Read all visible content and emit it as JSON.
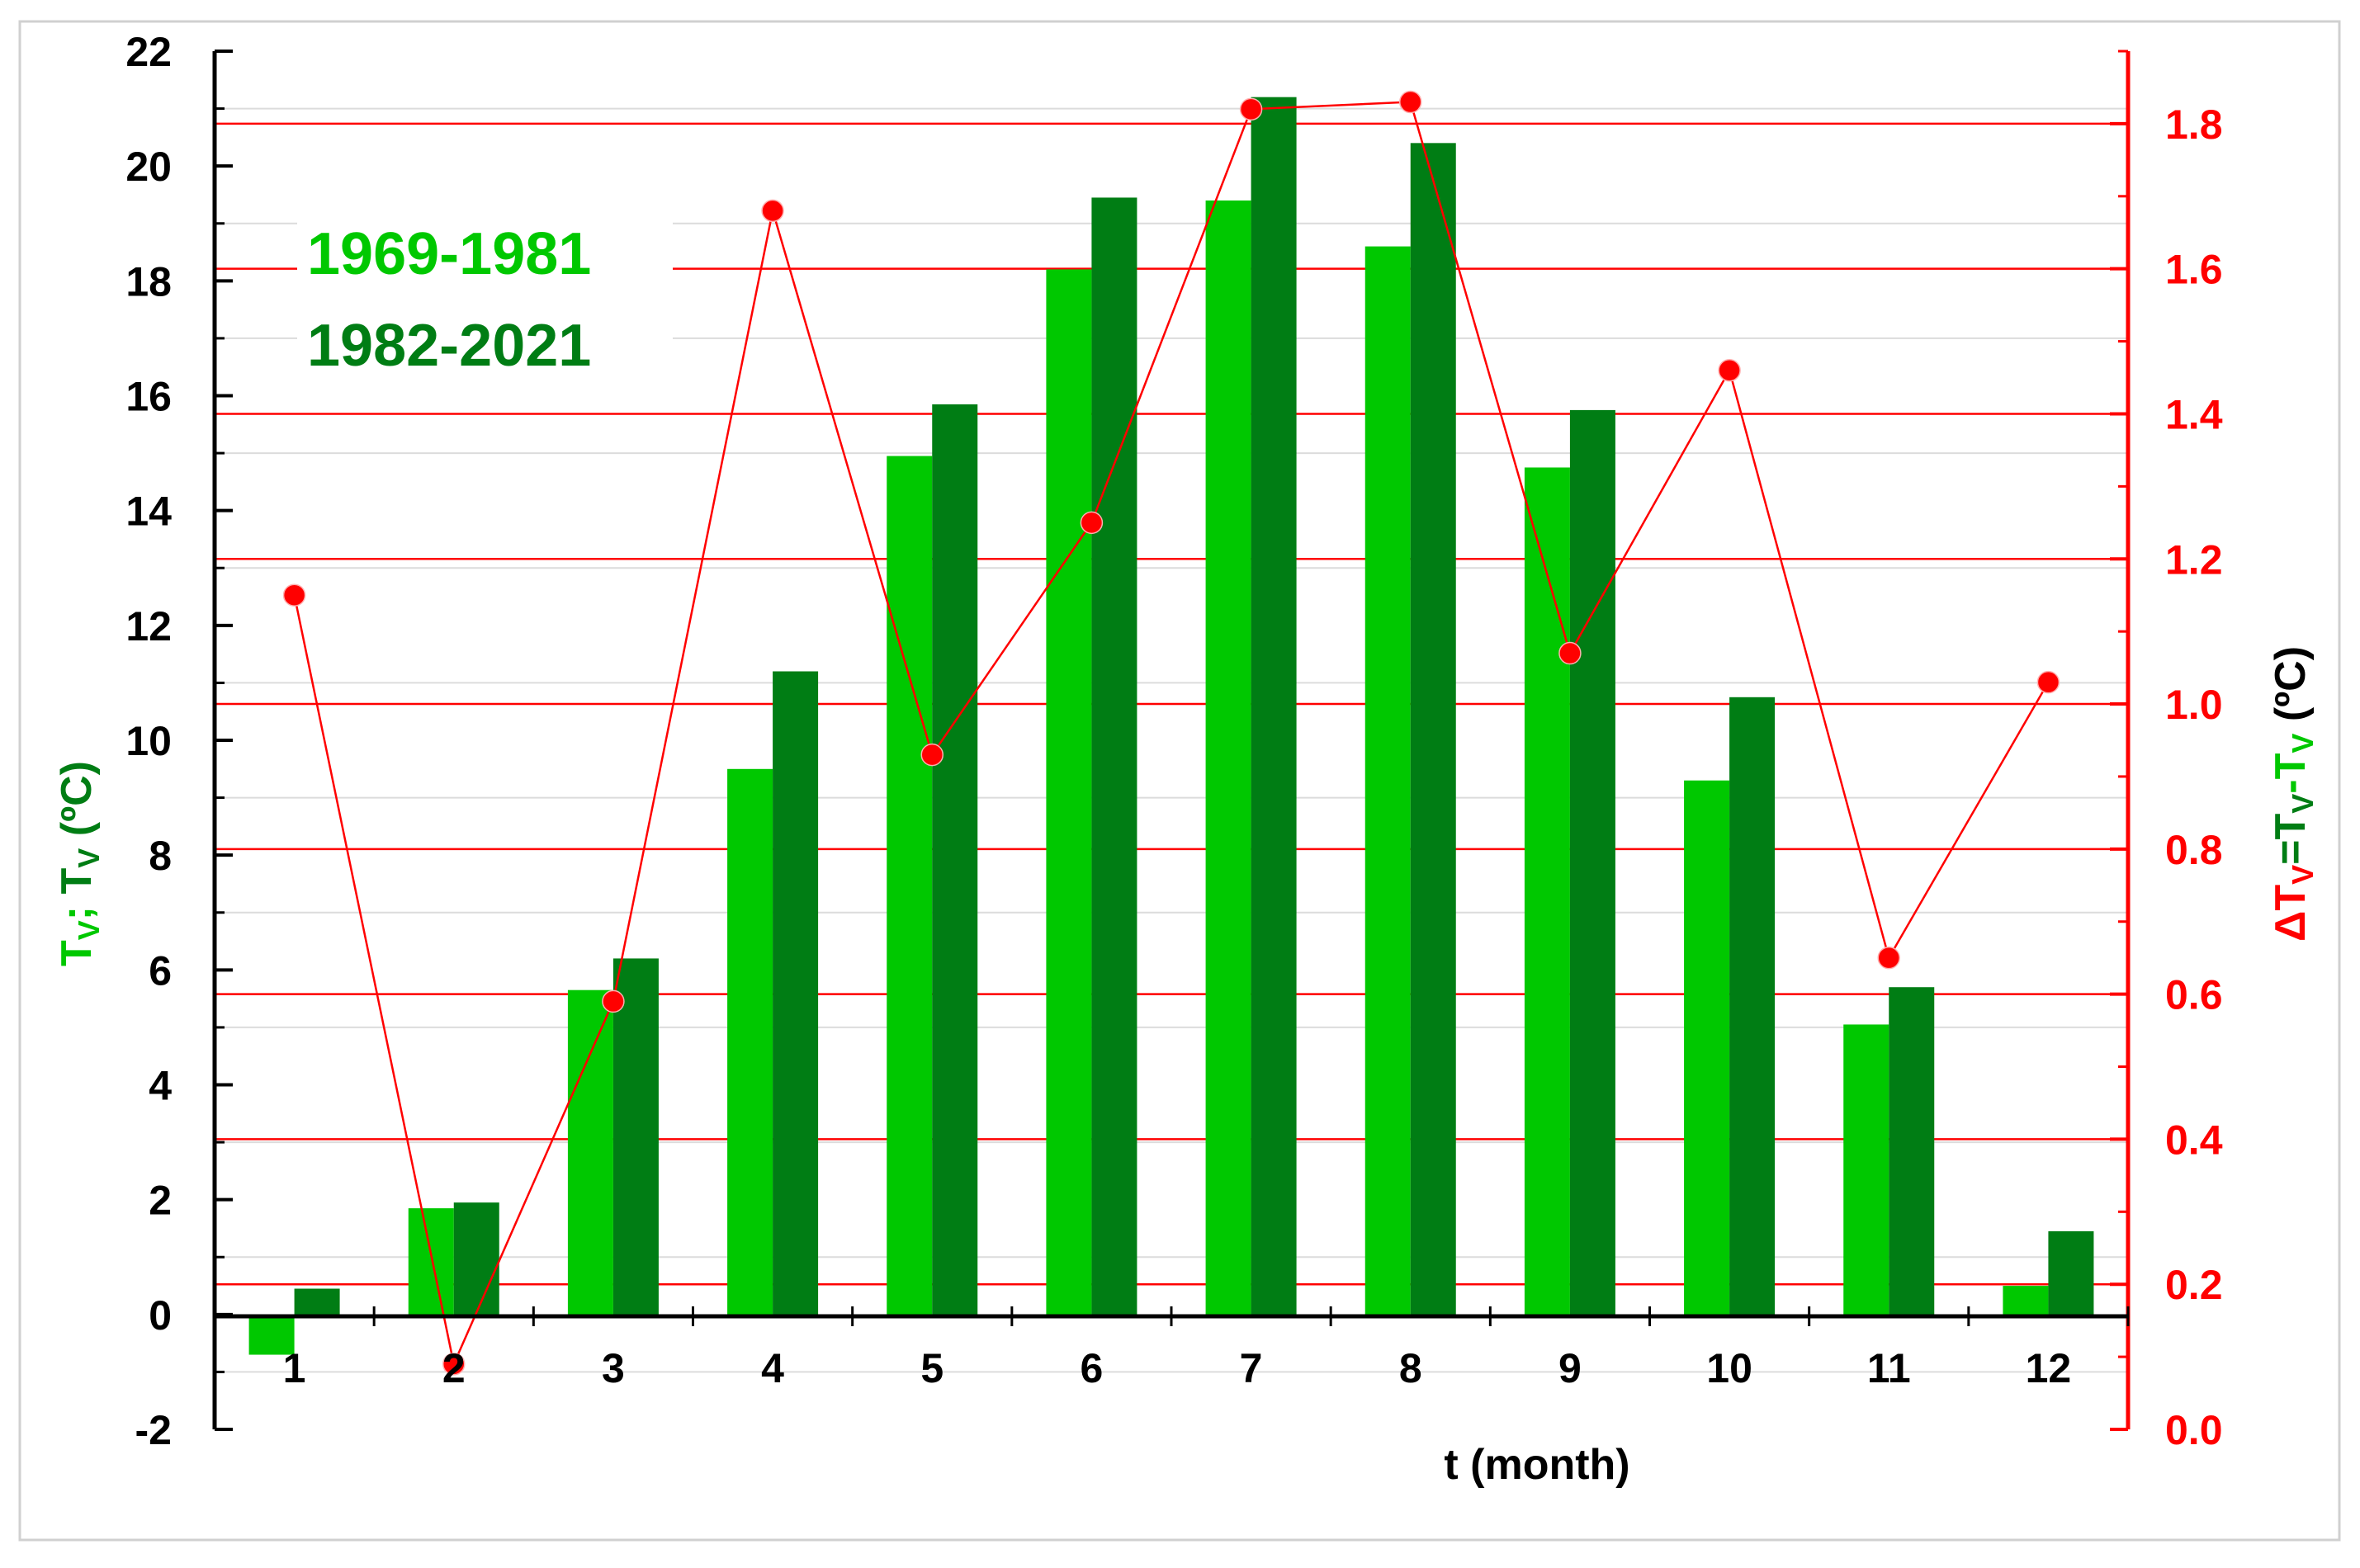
{
  "chart_data": {
    "type": "bar",
    "categories": [
      "1",
      "2",
      "3",
      "4",
      "5",
      "6",
      "7",
      "8",
      "9",
      "10",
      "11",
      "12"
    ],
    "xlabel": "t (month)",
    "ylabel_left": {
      "part1": "T",
      "sub1": "V",
      "sep": "; ",
      "part2": "T",
      "sub2": "V",
      "unit": " (ºC)"
    },
    "ylabel_right": {
      "delta": "ΔT",
      "sub1": "V",
      "eq": "=T",
      "sub2": "V",
      "minus": "-T",
      "sub3": "V",
      "unit": " (ºC)"
    },
    "ylim_left": [
      -2,
      22
    ],
    "ylim_right": [
      0.0,
      1.9
    ],
    "yticks_left": [
      "-2",
      "0",
      "2",
      "4",
      "6",
      "8",
      "10",
      "12",
      "14",
      "16",
      "18",
      "20",
      "22"
    ],
    "yticks_right": [
      "0.0",
      "0.2",
      "0.4",
      "0.6",
      "0.8",
      "1.0",
      "1.2",
      "1.4",
      "1.6",
      "1.8"
    ],
    "series": [
      {
        "name": "1969-1981",
        "axis": "left",
        "kind": "bar",
        "color": "#00c800",
        "values": [
          -0.7,
          1.85,
          5.65,
          9.5,
          14.95,
          18.2,
          19.4,
          18.6,
          14.75,
          9.3,
          5.05,
          0.5
        ]
      },
      {
        "name": "1982-2021",
        "axis": "left",
        "kind": "bar",
        "color": "#007d14",
        "values": [
          0.45,
          1.95,
          6.2,
          11.2,
          15.85,
          19.45,
          21.2,
          20.4,
          15.75,
          10.75,
          5.7,
          1.45
        ]
      },
      {
        "name": "ΔTv",
        "axis": "right",
        "kind": "line",
        "color": "#ff0000",
        "values": [
          1.15,
          0.09,
          0.59,
          1.68,
          0.93,
          1.25,
          1.82,
          1.83,
          1.07,
          1.46,
          0.65,
          1.03
        ]
      }
    ],
    "grid": "horizontal, aligned to right axis",
    "grid_color": "#ff0000",
    "left_axis_color": "#000000",
    "right_axis_color": "#ff0000",
    "legend_placement": "upper-left"
  }
}
